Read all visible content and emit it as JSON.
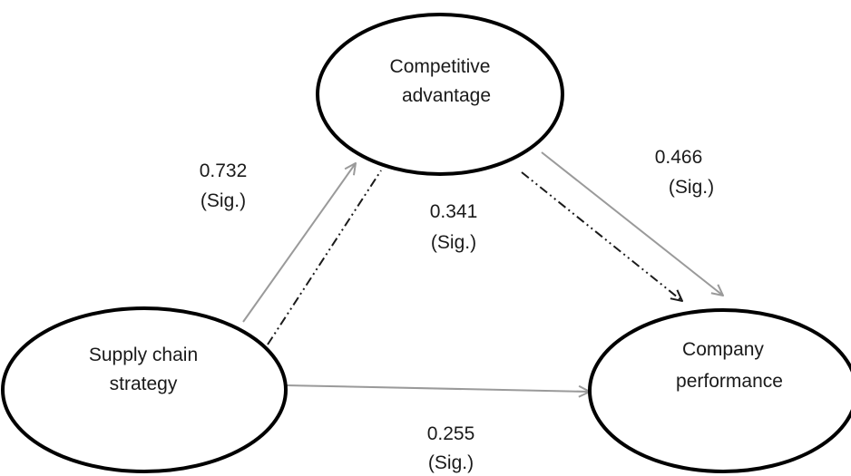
{
  "diagram": {
    "nodes": {
      "competitive_advantage": {
        "line1": "Competitive",
        "line2": "advantage"
      },
      "supply_chain_strategy": {
        "line1": "Supply chain",
        "line2": "strategy"
      },
      "company_performance": {
        "line1": "Company",
        "line2": "performance"
      }
    },
    "paths": {
      "scs_to_ca": {
        "value": "0.732",
        "sig": "(Sig.)"
      },
      "ca_to_cp": {
        "value": "0.466",
        "sig": "(Sig.)"
      },
      "scs_to_cp_indirect": {
        "value": "0.341",
        "sig": "(Sig.)"
      },
      "scs_to_cp_direct": {
        "value": "0.255",
        "sig": "(Sig.)"
      }
    },
    "colors": {
      "ellipse_stroke": "#000000",
      "direct_arrow": "#9a9a9a",
      "indirect_arrow": "#1a1a1a",
      "text": "#1a1a1a"
    }
  }
}
